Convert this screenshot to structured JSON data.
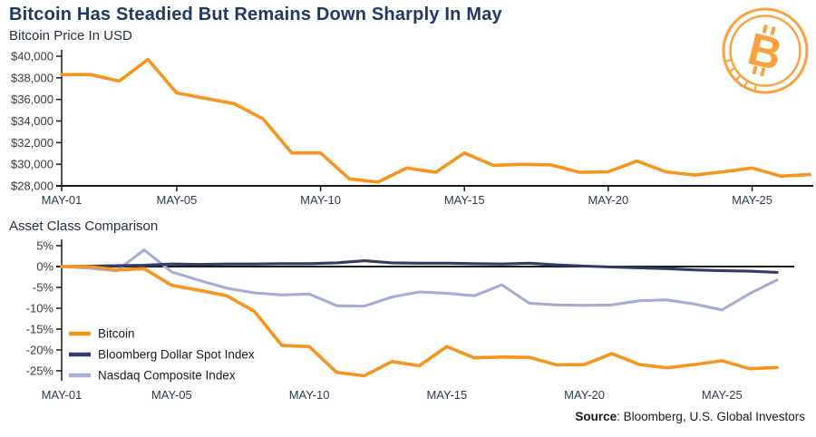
{
  "title": "Bitcoin Has Steadied But Remains Down Sharply In May",
  "top_chart_label": "Bitcoin Price In USD",
  "bottom_chart_label": "Asset Class Comparison",
  "source": {
    "prefix": "Source",
    "rest": ": Bloomberg, U.S. Global Investors"
  },
  "logo": {
    "symbol": "B"
  },
  "colors": {
    "bitcoin_orange": "#F7941E",
    "dollar_navy": "#333C68",
    "nasdaq_lavender": "#A6ACD5",
    "title_navy": "#1F3864",
    "axis_line": "#1A1A1A",
    "logo_orange": "#F9A13D"
  },
  "chart_data": [
    {
      "type": "line",
      "title": "Bitcoin Price In USD",
      "x_unit": "Day of May",
      "x_ticks": [
        {
          "day": 1,
          "label": "MAY-01"
        },
        {
          "day": 5,
          "label": "MAY-05"
        },
        {
          "day": 10,
          "label": "MAY-10"
        },
        {
          "day": 15,
          "label": "MAY-15"
        },
        {
          "day": 20,
          "label": "MAY-20"
        },
        {
          "day": 25,
          "label": "MAY-25"
        }
      ],
      "y_ticks": [
        {
          "v": 40000,
          "label": "$40,000"
        },
        {
          "v": 38000,
          "label": "$38,000"
        },
        {
          "v": 36000,
          "label": "$36,000"
        },
        {
          "v": 34000,
          "label": "$34,000"
        },
        {
          "v": 32000,
          "label": "$32,000"
        },
        {
          "v": 30000,
          "label": "$30,000"
        },
        {
          "v": 28000,
          "label": "$28,000"
        }
      ],
      "ylim": [
        28000,
        40000
      ],
      "grid": false,
      "series": [
        {
          "name": "Bitcoin",
          "color_key": "bitcoin_orange",
          "values": [
            38300,
            38300,
            37700,
            39700,
            36600,
            36100,
            35600,
            34200,
            31050,
            31050,
            28650,
            28350,
            29650,
            29250,
            31050,
            29900,
            30000,
            29950,
            29250,
            29300,
            30300,
            29300,
            29000,
            29300,
            29650,
            28900,
            29050
          ]
        }
      ]
    },
    {
      "type": "line",
      "title": "Asset Class Comparison",
      "x_unit": "Day of May",
      "x_ticks": [
        {
          "day": 1,
          "label": "MAY-01"
        },
        {
          "day": 5,
          "label": "MAY-05"
        },
        {
          "day": 10,
          "label": "MAY-10"
        },
        {
          "day": 15,
          "label": "MAY-15"
        },
        {
          "day": 20,
          "label": "MAY-20"
        },
        {
          "day": 25,
          "label": "MAY-25"
        }
      ],
      "y_ticks": [
        {
          "v": 5,
          "label": "5%"
        },
        {
          "v": 0,
          "label": "0%"
        },
        {
          "v": -5,
          "label": "-5%"
        },
        {
          "v": -10,
          "label": "-10%"
        },
        {
          "v": -15,
          "label": "-15%"
        },
        {
          "v": -20,
          "label": "-20%"
        },
        {
          "v": -25,
          "label": "-25%"
        }
      ],
      "ylim": [
        -27.4,
        5
      ],
      "grid": false,
      "legend_position": "left-middle",
      "series": [
        {
          "name": "Nasdaq Composite Index",
          "color_key": "nasdaq_lavender",
          "values": [
            0,
            -0.4,
            -1.0,
            4.0,
            -1.3,
            -3.3,
            -5.2,
            -6.3,
            -6.8,
            -6.6,
            -9.4,
            -9.5,
            -7.3,
            -6.1,
            -6.4,
            -7.0,
            -4.4,
            -8.8,
            -9.2,
            -9.3,
            -9.2,
            -8.2,
            -8.0,
            -9.0,
            -10.4,
            -6.5,
            -3.2
          ]
        },
        {
          "name": "Bloomberg Dollar Spot Index",
          "color_key": "dollar_navy",
          "values": [
            0,
            0.1,
            0.2,
            0.3,
            0.6,
            0.5,
            0.6,
            0.6,
            0.7,
            0.7,
            0.9,
            1.4,
            0.9,
            0.8,
            0.8,
            0.7,
            0.6,
            0.8,
            0.4,
            0.1,
            -0.1,
            -0.3,
            -0.5,
            -0.8,
            -1.0,
            -1.1,
            -1.4
          ]
        },
        {
          "name": "Bitcoin",
          "color_key": "bitcoin_orange",
          "values": [
            0,
            0,
            -0.8,
            -0.5,
            -4.5,
            -5.7,
            -7.0,
            -10.7,
            -18.9,
            -19.2,
            -25.4,
            -26.2,
            -22.8,
            -23.8,
            -19.2,
            -21.9,
            -21.7,
            -21.8,
            -23.6,
            -23.5,
            -20.9,
            -23.5,
            -24.3,
            -23.5,
            -22.6,
            -24.5,
            -24.2
          ]
        }
      ],
      "legend": [
        {
          "name": "Bitcoin",
          "color_key": "bitcoin_orange"
        },
        {
          "name": "Bloomberg Dollar Spot Index",
          "color_key": "dollar_navy"
        },
        {
          "name": "Nasdaq Composite Index",
          "color_key": "nasdaq_lavender"
        }
      ]
    }
  ]
}
